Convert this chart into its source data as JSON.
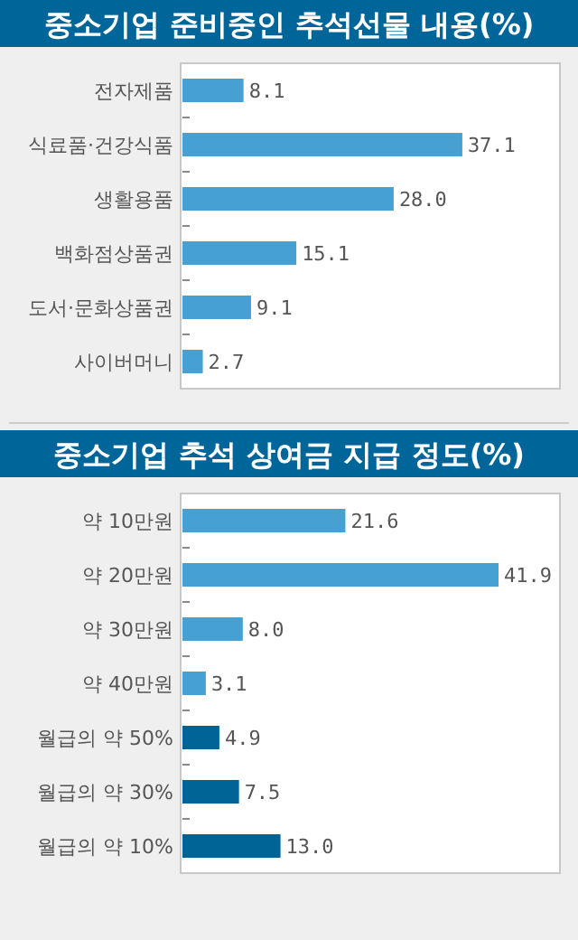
{
  "chart_data": [
    {
      "type": "bar",
      "orientation": "horizontal",
      "title": "중소기업 준비중인 추석선물 내용(%)",
      "categories": [
        "전자제품",
        "식료품·건강식품",
        "생활용품",
        "백화점상품권",
        "도서·문화상품권",
        "사이버머니"
      ],
      "values": [
        8.1,
        37.1,
        28.0,
        15.1,
        9.1,
        2.7
      ],
      "value_labels": [
        "8.1",
        "37.1",
        "28.0",
        "15.1",
        "9.1",
        "2.7"
      ],
      "colors": [
        "#46a0d2",
        "#46a0d2",
        "#46a0d2",
        "#46a0d2",
        "#46a0d2",
        "#46a0d2"
      ]
    },
    {
      "type": "bar",
      "orientation": "horizontal",
      "title": "중소기업 추석 상여금 지급 정도(%)",
      "categories": [
        "약 10만원",
        "약 20만원",
        "약 30만원",
        "약 40만원",
        "월급의 약 50%",
        "월급의 약 30%",
        "월급의 약 10%"
      ],
      "values": [
        21.6,
        41.9,
        8.0,
        3.1,
        4.9,
        7.5,
        13.0
      ],
      "value_labels": [
        "21.6",
        "41.9",
        "8.0",
        "3.1",
        "4.9",
        "7.5",
        "13.0"
      ],
      "colors": [
        "#46a0d2",
        "#46a0d2",
        "#46a0d2",
        "#46a0d2",
        "#006497",
        "#006497",
        "#006497"
      ]
    }
  ]
}
